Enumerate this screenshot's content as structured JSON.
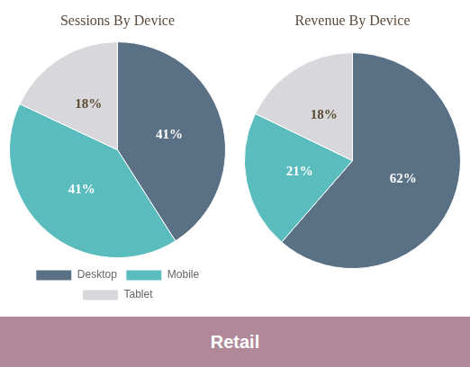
{
  "chart_data": [
    {
      "type": "pie",
      "title": "Sessions By Device",
      "categories": [
        "Desktop",
        "Mobile",
        "Tablet"
      ],
      "values": [
        41,
        41,
        18
      ],
      "value_labels": [
        "41%",
        "41%",
        "18%"
      ],
      "colors": [
        "#5a7085",
        "#5bbcbe",
        "#d8d8dc"
      ],
      "data_labels": true,
      "legend": "bottom",
      "annotations": [
        "Retail"
      ]
    },
    {
      "type": "pie",
      "title": "Revenue By Device",
      "categories": [
        "Desktop",
        "Mobile",
        "Tablet"
      ],
      "values": [
        62,
        21,
        18
      ],
      "value_labels": [
        "62%",
        "21%",
        "18%"
      ],
      "colors": [
        "#5a7085",
        "#5bbcbe",
        "#d8d8dc"
      ],
      "data_labels": true
    }
  ]
}
